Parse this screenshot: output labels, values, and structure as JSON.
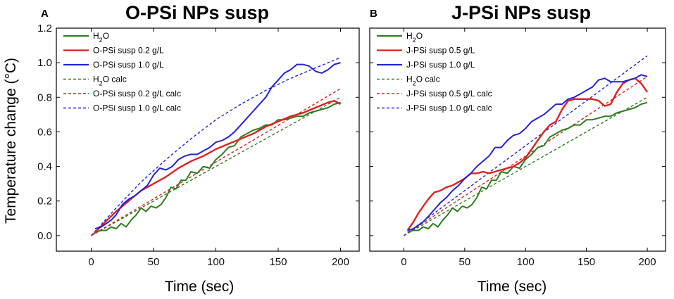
{
  "shared": {
    "ylabel": "Temperature change (°C)",
    "xlabel": "Time (sec)"
  },
  "chart_data": [
    {
      "type": "line",
      "panel": "A",
      "title": "O-PSi NPs susp",
      "xlabel": "Time (sec)",
      "ylabel": "Temperature change (°C)",
      "xlim": [
        -28,
        215
      ],
      "ylim": [
        -0.09,
        1.2
      ],
      "xticks": [
        0,
        50,
        100,
        150,
        200
      ],
      "yticks": [
        0.0,
        0.2,
        0.4,
        0.6,
        0.8,
        1.0,
        1.2
      ],
      "legend_position": "top-left",
      "series": [
        {
          "name": "H2O",
          "label_main": "H",
          "label_sub": "2",
          "label_rest": "O",
          "style": "solid",
          "color": "#2e7d1e",
          "x": [
            3,
            8,
            12,
            16,
            20,
            24,
            28,
            32,
            36,
            40,
            44,
            48,
            52,
            56,
            60,
            64,
            68,
            72,
            76,
            80,
            85,
            90,
            95,
            100,
            105,
            110,
            115,
            120,
            125,
            130,
            135,
            140,
            145,
            150,
            155,
            160,
            165,
            170,
            175,
            180,
            185,
            190,
            195,
            200
          ],
          "y": [
            0.02,
            0.03,
            0.03,
            0.05,
            0.04,
            0.07,
            0.05,
            0.09,
            0.12,
            0.16,
            0.14,
            0.17,
            0.16,
            0.18,
            0.22,
            0.28,
            0.27,
            0.32,
            0.32,
            0.37,
            0.36,
            0.4,
            0.39,
            0.44,
            0.47,
            0.51,
            0.52,
            0.57,
            0.59,
            0.61,
            0.62,
            0.64,
            0.64,
            0.67,
            0.67,
            0.68,
            0.69,
            0.69,
            0.71,
            0.72,
            0.73,
            0.74,
            0.76,
            0.77
          ]
        },
        {
          "name": "O-PSi susp 0.2 g/L",
          "style": "solid",
          "color": "#e02020",
          "x": [
            2,
            10,
            20,
            30,
            40,
            50,
            60,
            70,
            80,
            90,
            100,
            110,
            120,
            130,
            140,
            150,
            160,
            170,
            180,
            190,
            195,
            200
          ],
          "y": [
            0.01,
            0.07,
            0.14,
            0.2,
            0.26,
            0.3,
            0.34,
            0.39,
            0.43,
            0.46,
            0.5,
            0.53,
            0.56,
            0.59,
            0.63,
            0.66,
            0.69,
            0.71,
            0.74,
            0.77,
            0.78,
            0.76
          ]
        },
        {
          "name": "O-PSi susp 1.0 g/L",
          "style": "solid",
          "color": "#2222dd",
          "x": [
            3,
            8,
            12,
            16,
            20,
            25,
            30,
            35,
            40,
            45,
            50,
            55,
            60,
            65,
            70,
            75,
            80,
            85,
            90,
            95,
            100,
            105,
            110,
            115,
            120,
            125,
            130,
            135,
            140,
            145,
            150,
            155,
            160,
            165,
            170,
            175,
            180,
            185,
            190,
            195,
            200
          ],
          "y": [
            0.04,
            0.05,
            0.07,
            0.09,
            0.12,
            0.18,
            0.21,
            0.23,
            0.26,
            0.29,
            0.35,
            0.39,
            0.38,
            0.4,
            0.44,
            0.46,
            0.47,
            0.47,
            0.49,
            0.51,
            0.54,
            0.55,
            0.57,
            0.6,
            0.64,
            0.68,
            0.72,
            0.76,
            0.8,
            0.86,
            0.9,
            0.94,
            0.96,
            0.99,
            0.99,
            0.98,
            0.95,
            0.94,
            0.96,
            0.99,
            1.0
          ]
        },
        {
          "name": "H2O calc",
          "label_main": "H",
          "label_sub": "2",
          "label_rest": "O calc",
          "style": "dashed",
          "color": "#2e7d1e",
          "x": [
            0,
            200
          ],
          "y": [
            0.0,
            0.8
          ]
        },
        {
          "name": "O-PSi susp 0.2 g/L calc",
          "style": "dashed",
          "color": "#e02020",
          "x": [
            0,
            200
          ],
          "y": [
            0.0,
            0.85
          ]
        },
        {
          "name": "O-PSi susp 1.0 g/L calc",
          "style": "dashed",
          "color": "#2222dd",
          "x": [
            0,
            20,
            40,
            60,
            80,
            100,
            120,
            140,
            160,
            180,
            200
          ],
          "y": [
            0.0,
            0.16,
            0.31,
            0.44,
            0.56,
            0.67,
            0.76,
            0.84,
            0.91,
            0.97,
            1.03
          ]
        }
      ]
    },
    {
      "type": "line",
      "panel": "B",
      "title": "J-PSi NPs susp",
      "xlabel": "Time (sec)",
      "ylabel": "Temperature change (°C)",
      "xlim": [
        -28,
        215
      ],
      "ylim": [
        -0.09,
        1.2
      ],
      "xticks": [
        0,
        50,
        100,
        150,
        200
      ],
      "yticks": [
        0.0,
        0.2,
        0.4,
        0.6,
        0.8,
        1.0,
        1.2
      ],
      "legend_position": "top-left",
      "series": [
        {
          "name": "H2O",
          "label_main": "H",
          "label_sub": "2",
          "label_rest": "O",
          "style": "solid",
          "color": "#2e7d1e",
          "x": [
            3,
            8,
            12,
            16,
            20,
            24,
            28,
            32,
            36,
            40,
            44,
            48,
            52,
            56,
            60,
            64,
            68,
            72,
            76,
            80,
            85,
            90,
            95,
            100,
            105,
            110,
            115,
            120,
            125,
            130,
            135,
            140,
            145,
            150,
            155,
            160,
            165,
            170,
            175,
            180,
            185,
            190,
            195,
            200
          ],
          "y": [
            0.02,
            0.03,
            0.03,
            0.05,
            0.04,
            0.07,
            0.05,
            0.09,
            0.12,
            0.16,
            0.14,
            0.17,
            0.16,
            0.18,
            0.22,
            0.28,
            0.27,
            0.32,
            0.32,
            0.37,
            0.36,
            0.4,
            0.39,
            0.44,
            0.47,
            0.51,
            0.52,
            0.57,
            0.59,
            0.61,
            0.62,
            0.64,
            0.64,
            0.67,
            0.67,
            0.68,
            0.69,
            0.69,
            0.71,
            0.72,
            0.73,
            0.74,
            0.76,
            0.77
          ]
        },
        {
          "name": "J-PSi susp 0.5 g/L",
          "style": "solid",
          "color": "#e02020",
          "x": [
            3,
            8,
            12,
            16,
            20,
            25,
            30,
            35,
            40,
            45,
            50,
            55,
            60,
            65,
            70,
            75,
            80,
            85,
            90,
            95,
            100,
            105,
            110,
            115,
            120,
            125,
            130,
            135,
            140,
            145,
            150,
            155,
            160,
            165,
            170,
            175,
            180,
            185,
            190,
            195,
            200
          ],
          "y": [
            0.03,
            0.08,
            0.13,
            0.17,
            0.21,
            0.25,
            0.26,
            0.28,
            0.29,
            0.31,
            0.33,
            0.36,
            0.36,
            0.37,
            0.36,
            0.37,
            0.38,
            0.39,
            0.4,
            0.42,
            0.45,
            0.5,
            0.55,
            0.6,
            0.64,
            0.66,
            0.73,
            0.78,
            0.79,
            0.79,
            0.79,
            0.79,
            0.78,
            0.75,
            0.76,
            0.83,
            0.88,
            0.9,
            0.91,
            0.88,
            0.83
          ]
        },
        {
          "name": "J-PSi susp 1.0 g/L",
          "style": "solid",
          "color": "#2222dd",
          "x": [
            3,
            8,
            12,
            16,
            20,
            25,
            30,
            35,
            40,
            45,
            50,
            55,
            60,
            65,
            70,
            75,
            80,
            85,
            90,
            95,
            100,
            105,
            110,
            115,
            120,
            125,
            130,
            135,
            140,
            145,
            150,
            155,
            160,
            165,
            170,
            175,
            180,
            185,
            190,
            195,
            200
          ],
          "y": [
            0.03,
            0.04,
            0.06,
            0.08,
            0.11,
            0.15,
            0.19,
            0.22,
            0.26,
            0.29,
            0.33,
            0.36,
            0.4,
            0.43,
            0.46,
            0.51,
            0.51,
            0.55,
            0.58,
            0.59,
            0.62,
            0.66,
            0.68,
            0.7,
            0.73,
            0.76,
            0.76,
            0.79,
            0.8,
            0.82,
            0.84,
            0.86,
            0.9,
            0.91,
            0.89,
            0.89,
            0.89,
            0.9,
            0.91,
            0.93,
            0.92
          ]
        },
        {
          "name": "H2O calc",
          "label_main": "H",
          "label_sub": "2",
          "label_rest": "O calc",
          "style": "dashed",
          "color": "#2e7d1e",
          "x": [
            0,
            200
          ],
          "y": [
            0.0,
            0.8
          ]
        },
        {
          "name": "J-PSi susp 0.5 g/L calc",
          "style": "dashed",
          "color": "#e02020",
          "x": [
            0,
            200
          ],
          "y": [
            0.0,
            0.92
          ]
        },
        {
          "name": "J-PSi susp 1.0 g/L calc",
          "style": "dashed",
          "color": "#2222dd",
          "x": [
            0,
            200
          ],
          "y": [
            0.0,
            1.04
          ]
        }
      ]
    }
  ]
}
